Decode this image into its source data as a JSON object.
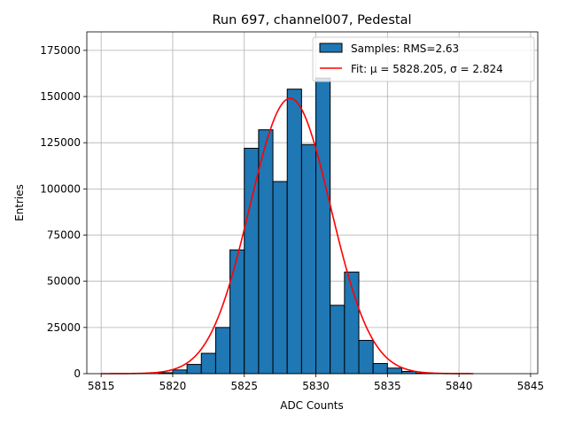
{
  "chart_data": {
    "type": "bar",
    "title": "Run 697, channel007, Pedestal",
    "xlabel": "ADC Counts",
    "ylabel": "Entries",
    "xlim": [
      5814,
      5845.5
    ],
    "ylim": [
      0,
      185000
    ],
    "xticks": [
      5815,
      5820,
      5825,
      5830,
      5835,
      5840,
      5845
    ],
    "xtick_labels": [
      "5815",
      "5820",
      "5825",
      "5830",
      "5835",
      "5840",
      "5845"
    ],
    "yticks": [
      0,
      25000,
      50000,
      75000,
      100000,
      125000,
      150000,
      175000
    ],
    "ytick_labels": [
      "0",
      "25000",
      "50000",
      "75000",
      "100000",
      "125000",
      "150000",
      "175000"
    ],
    "grid": true,
    "legend_position": "top-right",
    "histogram": {
      "name": "Samples: RMS=2.63",
      "color": "#1f77b4",
      "edge_color": "#000000",
      "bin_width": 1,
      "bins": [
        {
          "x0": 5819,
          "count": 500
        },
        {
          "x0": 5820,
          "count": 2000
        },
        {
          "x0": 5821,
          "count": 5000
        },
        {
          "x0": 5822,
          "count": 11000
        },
        {
          "x0": 5823,
          "count": 25000
        },
        {
          "x0": 5824,
          "count": 67000
        },
        {
          "x0": 5825,
          "count": 122000
        },
        {
          "x0": 5826,
          "count": 132000
        },
        {
          "x0": 5827,
          "count": 104000
        },
        {
          "x0": 5828,
          "count": 154000
        },
        {
          "x0": 5829,
          "count": 124000
        },
        {
          "x0": 5830,
          "count": 160000
        },
        {
          "x0": 5831,
          "count": 37000
        },
        {
          "x0": 5832,
          "count": 55000
        },
        {
          "x0": 5833,
          "count": 18000
        },
        {
          "x0": 5834,
          "count": 5500
        },
        {
          "x0": 5835,
          "count": 3000
        },
        {
          "x0": 5836,
          "count": 1200
        },
        {
          "x0": 5837,
          "count": 300
        }
      ]
    },
    "fit": {
      "name": "Fit: μ = 5828.205, σ = 2.824",
      "color": "#ff0000",
      "function": "gaussian",
      "mu": 5828.205,
      "sigma": 2.824,
      "amplitude": 149000,
      "x_range": [
        5815,
        5841
      ]
    }
  }
}
